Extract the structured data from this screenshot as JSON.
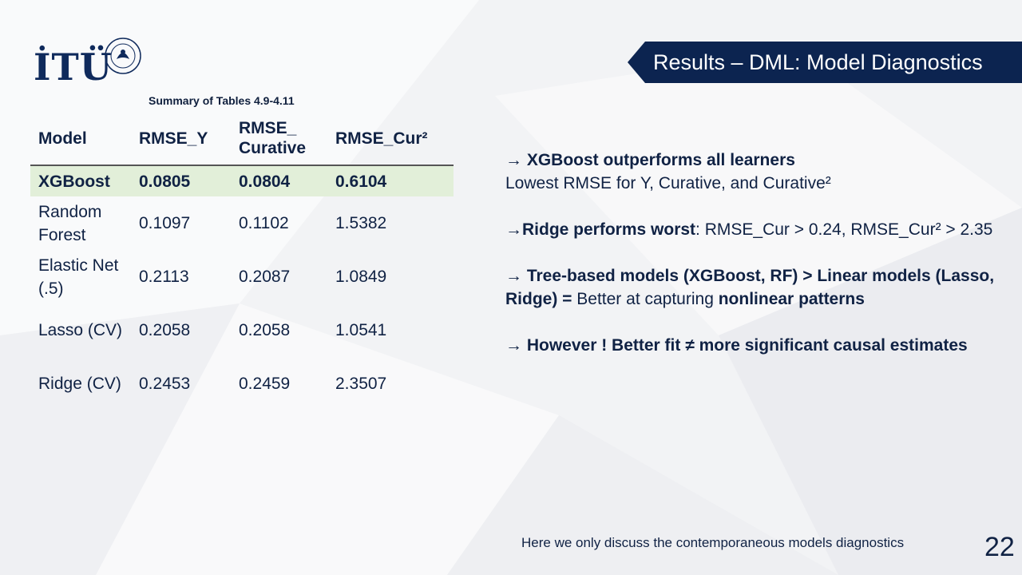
{
  "slide": {
    "title": "Results – DML: Model Diagnostics",
    "logo_text": "İTÜ",
    "caption": "Summary of Tables 4.9-4.11",
    "page_number": "22",
    "footnote": "Here we only discuss the contemporaneous models diagnostics",
    "highlight_color": "#e2efd9",
    "title_bar_color": "#0c2450"
  },
  "table": {
    "headers": [
      "Model",
      "RMSE_Y",
      "RMSE_ Curative",
      "RMSE_Cur²"
    ],
    "rows": [
      {
        "model": "XGBoost",
        "rmse_y": "0.0805",
        "rmse_curative": "0.0804",
        "rmse_cur2": "0.6104",
        "highlight": true
      },
      {
        "model": "Random Forest",
        "rmse_y": "0.1097",
        "rmse_curative": "0.1102",
        "rmse_cur2": "1.5382"
      },
      {
        "model": "Elastic Net (.5)",
        "rmse_y": "0.2113",
        "rmse_curative": "0.2087",
        "rmse_cur2": "1.0849"
      },
      {
        "model": "Lasso (CV)",
        "rmse_y": "0.2058",
        "rmse_curative": "0.2058",
        "rmse_cur2": "1.0541"
      },
      {
        "model": "Ridge (CV)",
        "rmse_y": "0.2453",
        "rmse_curative": "0.2459",
        "rmse_cur2": "2.3507"
      }
    ]
  },
  "bullets": {
    "b1_head": "→ XGBoost outperforms all learners",
    "b1_body": "Lowest RMSE for Y, Curative, and Curative²",
    "b2_head": "→Ridge performs worst",
    "b2_body": ": RMSE_Cur > 0.24, RMSE_Cur² > 2.35",
    "b3_head": "→ Tree-based models (XGBoost, RF) > Linear models (Lasso, Ridge) =",
    "b3_mid": " Better at capturing ",
    "b3_tail": "nonlinear patterns",
    "b4_head": "→ However ! Better fit ≠ more significant causal estimates"
  }
}
